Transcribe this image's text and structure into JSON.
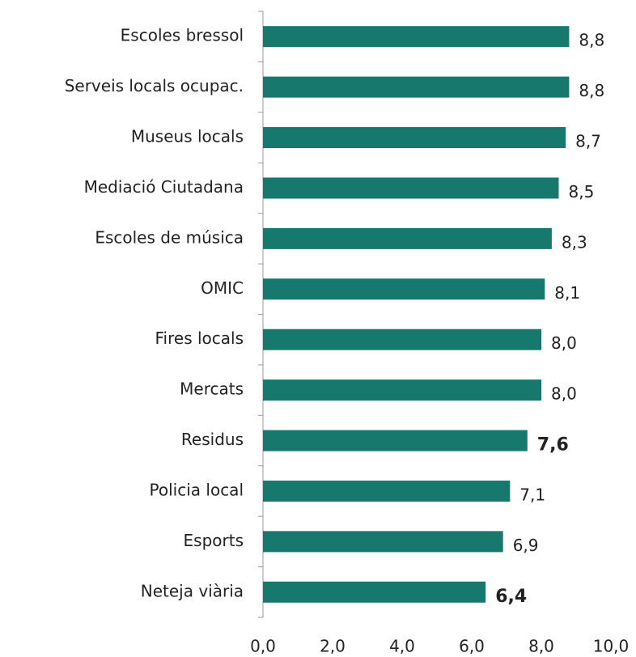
{
  "chart_data": {
    "type": "barh",
    "categories": [
      "Escoles bressol",
      "Serveis locals ocupac.",
      "Museus locals",
      "Mediació Ciutadana",
      "Escoles de música",
      "OMIC",
      "Fires locals",
      "Mercats",
      "Residus",
      "Policia local",
      "Esports",
      "Neteja viària"
    ],
    "values": [
      8.8,
      8.8,
      8.7,
      8.5,
      8.3,
      8.1,
      8.0,
      8.0,
      7.6,
      7.1,
      6.9,
      6.4
    ],
    "value_labels": [
      "8,8",
      "8,8",
      "8,7",
      "8,5",
      "8,3",
      "8,1",
      "8,0",
      "8,0",
      "7,6",
      "7,1",
      "6,9",
      "6,4"
    ],
    "value_label_bold": [
      false,
      false,
      false,
      false,
      false,
      false,
      false,
      false,
      true,
      false,
      false,
      true
    ],
    "color": "#17786e",
    "xlim": [
      0,
      10
    ],
    "xticks": [
      {
        "value": 0,
        "label": "0,0"
      },
      {
        "value": 2,
        "label": "2,0"
      },
      {
        "value": 4,
        "label": "4,0"
      },
      {
        "value": 6,
        "label": "6,0"
      },
      {
        "value": 8,
        "label": "8,0"
      },
      {
        "value": 10,
        "label": "10,0"
      }
    ],
    "grid": false
  }
}
